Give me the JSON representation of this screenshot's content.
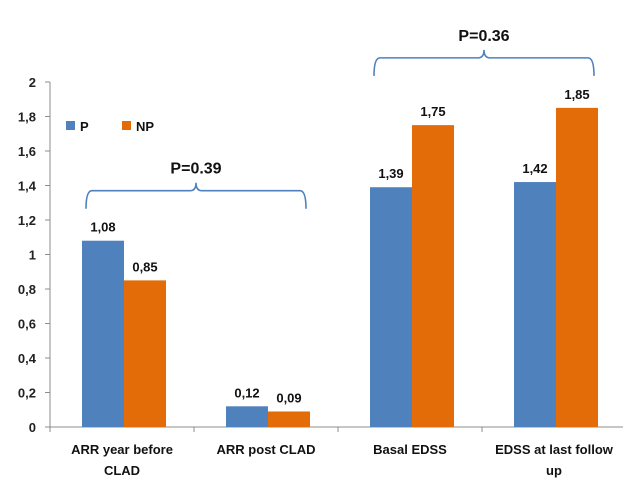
{
  "chart_data": {
    "type": "bar",
    "categories": [
      [
        "ARR year before",
        "CLAD"
      ],
      [
        "ARR post CLAD"
      ],
      [
        "Basal EDSS"
      ],
      [
        "EDSS at last follow",
        "up"
      ]
    ],
    "series": [
      {
        "name": "P",
        "color": "#4f81bd",
        "values": [
          1.08,
          0.12,
          1.39,
          1.42
        ],
        "labels": [
          "1,08",
          "0,12",
          "1,39",
          "1,42"
        ]
      },
      {
        "name": "NP",
        "color": "#e36c09",
        "values": [
          0.85,
          0.09,
          1.75,
          1.85
        ],
        "labels": [
          "0,85",
          "0,09",
          "1,75",
          "1,85"
        ]
      }
    ],
    "ylim": [
      0,
      2
    ],
    "yticks": [
      {
        "value": 0,
        "label": "0"
      },
      {
        "value": 0.2,
        "label": "0,2"
      },
      {
        "value": 0.4,
        "label": "0,4"
      },
      {
        "value": 0.6,
        "label": "0,6"
      },
      {
        "value": 0.8,
        "label": "0,8"
      },
      {
        "value": 1.0,
        "label": "1"
      },
      {
        "value": 1.2,
        "label": "1,2"
      },
      {
        "value": 1.4,
        "label": "1,4"
      },
      {
        "value": 1.6,
        "label": "1,6"
      },
      {
        "value": 1.8,
        "label": "1,8"
      },
      {
        "value": 2.0,
        "label": "2"
      }
    ],
    "grid": false,
    "legend_position": "top-left",
    "annotations": [
      {
        "text": "P=0.39",
        "spans_categories": [
          0,
          1
        ]
      },
      {
        "text": "P=0.36",
        "spans_categories": [
          2,
          3
        ]
      }
    ]
  }
}
